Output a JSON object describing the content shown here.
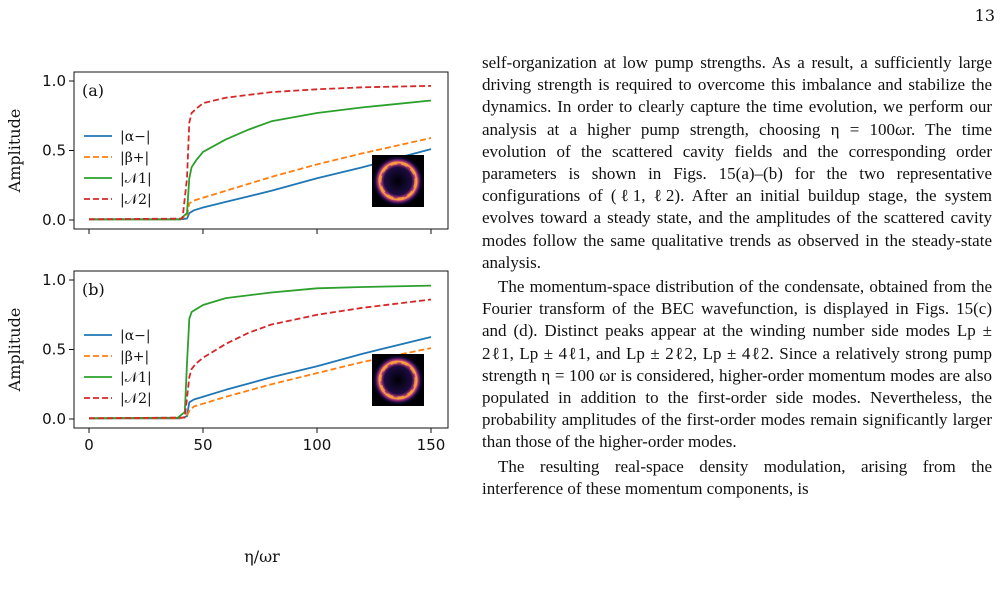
{
  "page": {
    "number": "13"
  },
  "figure": {
    "x_title": "η/ωr",
    "chart_data": [
      {
        "type": "line",
        "panel": "(a)",
        "ylabel": "Amplitude",
        "xlim": [
          0,
          150
        ],
        "ylim": [
          0,
          1.0
        ],
        "xticks": [
          0,
          50,
          100,
          150
        ],
        "yticks": [
          0.0,
          0.5,
          1.0
        ],
        "ytick_labels": [
          "0.0",
          "0.5",
          "1.0"
        ],
        "legend_position": "left",
        "inset": "ring-shaped density image (bottom-right)",
        "series": [
          {
            "name": "|α−|",
            "color": "#1f77b4",
            "dashed": false,
            "x": [
              0,
              40,
              43,
              44,
              46,
              50,
              60,
              80,
              100,
              120,
              150
            ],
            "y": [
              0.005,
              0.005,
              0.01,
              0.05,
              0.07,
              0.09,
              0.13,
              0.21,
              0.3,
              0.38,
              0.51
            ]
          },
          {
            "name": "|β+|",
            "color": "#ff7f0e",
            "dashed": true,
            "x": [
              0,
              40,
              43,
              44,
              46,
              50,
              60,
              80,
              100,
              120,
              150
            ],
            "y": [
              0.005,
              0.005,
              0.03,
              0.12,
              0.14,
              0.16,
              0.21,
              0.31,
              0.4,
              0.48,
              0.59
            ]
          },
          {
            "name": "|𝒩1|",
            "color": "#2ca02c",
            "dashed": false,
            "x": [
              0,
              40,
              43,
              44,
              45,
              47,
              50,
              60,
              70,
              80,
              100,
              120,
              150
            ],
            "y": [
              0.005,
              0.005,
              0.05,
              0.3,
              0.38,
              0.43,
              0.49,
              0.58,
              0.65,
              0.71,
              0.77,
              0.81,
              0.86
            ]
          },
          {
            "name": "|𝒩2|",
            "color": "#d62728",
            "dashed": true,
            "x": [
              0,
              41,
              43,
              44,
              45,
              47,
              50,
              60,
              80,
              100,
              120,
              150
            ],
            "y": [
              0.005,
              0.01,
              0.3,
              0.7,
              0.77,
              0.8,
              0.84,
              0.88,
              0.92,
              0.94,
              0.955,
              0.965
            ]
          }
        ]
      },
      {
        "type": "line",
        "panel": "(b)",
        "ylabel": "Amplitude",
        "xlim": [
          0,
          150
        ],
        "ylim": [
          0,
          1.0
        ],
        "xticks": [
          0,
          50,
          100,
          150
        ],
        "yticks": [
          0.0,
          0.5,
          1.0
        ],
        "ytick_labels": [
          "0.0",
          "0.5",
          "1.0"
        ],
        "legend_position": "left",
        "inset": "ring-shaped density image (bottom-right)",
        "series": [
          {
            "name": "|α−|",
            "color": "#1f77b4",
            "dashed": false,
            "x": [
              0,
              40,
              43,
              44,
              46,
              50,
              60,
              80,
              100,
              120,
              150
            ],
            "y": [
              0.005,
              0.005,
              0.02,
              0.12,
              0.14,
              0.16,
              0.21,
              0.3,
              0.38,
              0.47,
              0.59
            ]
          },
          {
            "name": "|β+|",
            "color": "#ff7f0e",
            "dashed": true,
            "x": [
              0,
              40,
              43,
              44,
              46,
              50,
              60,
              80,
              100,
              120,
              150
            ],
            "y": [
              0.005,
              0.005,
              0.02,
              0.06,
              0.09,
              0.11,
              0.16,
              0.25,
              0.33,
              0.41,
              0.51
            ]
          },
          {
            "name": "|𝒩1|",
            "color": "#2ca02c",
            "dashed": false,
            "x": [
              0,
              39,
              42,
              43,
              44,
              45,
              47,
              50,
              60,
              80,
              100,
              120,
              150
            ],
            "y": [
              0.005,
              0.01,
              0.05,
              0.4,
              0.72,
              0.77,
              0.79,
              0.82,
              0.87,
              0.91,
              0.94,
              0.95,
              0.96
            ]
          },
          {
            "name": "|𝒩2|",
            "color": "#d62728",
            "dashed": true,
            "x": [
              0,
              42,
              43,
              44,
              45,
              47,
              50,
              60,
              70,
              80,
              100,
              120,
              150
            ],
            "y": [
              0.005,
              0.01,
              0.15,
              0.3,
              0.36,
              0.4,
              0.44,
              0.54,
              0.62,
              0.68,
              0.75,
              0.8,
              0.86
            ]
          }
        ]
      }
    ]
  },
  "text": {
    "p1": "self-organization at low pump strengths. As a result, a sufficiently large driving strength is required to overcome this imbalance and stabilize the dynamics. In order to clearly capture the time evolution, we perform our analysis at a higher pump strength, choosing η = 100ωr. The time evolution of the scattered cavity fields and the corresponding order parameters is shown in Figs. 15(a)–(b) for the two representative configurations of (ℓ1, ℓ2). After an initial buildup stage, the system evolves toward a steady state, and the amplitudes of the scattered cavity modes follow the same qualitative trends as observed in the steady-state analysis.",
    "p2": "The momentum-space distribution of the condensate, obtained from the Fourier transform of the BEC wavefunction, is displayed in Figs. 15(c) and (d). Distinct peaks appear at the winding number side modes Lp ± 2ℓ1, Lp ± 4ℓ1, and Lp ± 2ℓ2, Lp ± 4ℓ2. Since a relatively strong pump strength η = 100 ωr is considered, higher-order momentum modes are also populated in addition to the first-order side modes. Nevertheless, the probability amplitudes of the first-order modes remain significantly larger than those of the higher-order modes.",
    "p3": "The resulting real-space density modulation, arising from the interference of these momentum components, is"
  }
}
